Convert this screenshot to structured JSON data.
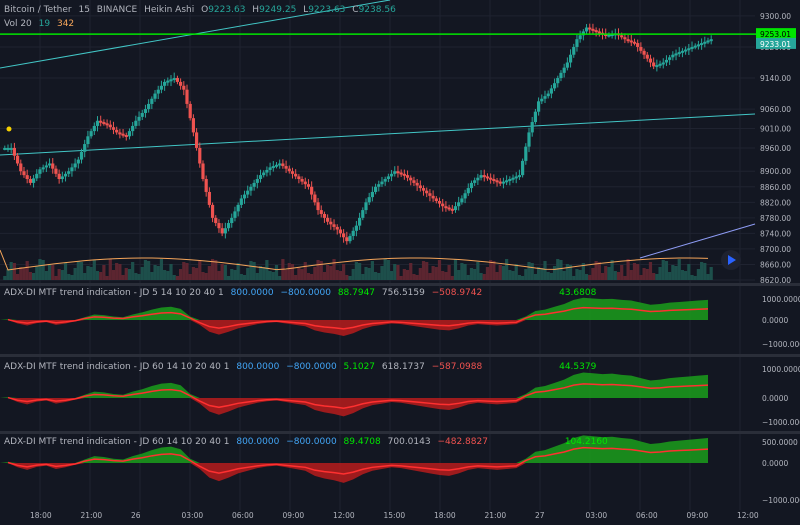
{
  "header": {
    "symbol": "Bitcoin / Tether",
    "interval": "15",
    "exchange": "BINANCE",
    "chart_style": "Heikin Ashi",
    "o_label": "O",
    "o_value": "9223.63",
    "h_label": "H",
    "h_value": "9249.25",
    "l_label": "L",
    "l_value": "9223.63",
    "c_label": "C",
    "c_value": "9238.56",
    "vol_label": "Vol 20",
    "vol_value_1": "19",
    "vol_value_2": "342"
  },
  "price_axis": {
    "ticks": [
      "9300.00",
      "9220.00",
      "9140.00",
      "9060.00",
      "9010.00",
      "8960.00",
      "8900.00",
      "8860.00",
      "8820.00",
      "8780.00",
      "8740.00",
      "8700.00",
      "8660.00",
      "8620.00"
    ],
    "badge_green": "9253.01",
    "badge_price": "9233.01"
  },
  "indicators": [
    {
      "title": "ADX-DI MTF trend indication - JD 5 14 10 20 40 1",
      "values": [
        "800.0000",
        "−800.0000",
        "88.7947",
        "756.5159",
        "−508.9742",
        "",
        "43.6808"
      ],
      "ticks": [
        "1000.0000",
        "0.0000",
        "−1000.0000"
      ]
    },
    {
      "title": "ADX-DI MTF trend indication - JD 60 14 10 20 40 1",
      "values": [
        "800.0000",
        "−800.0000",
        "5.1027",
        "618.1737",
        "−587.0988",
        "",
        "44.5379"
      ],
      "ticks": [
        "1000.0000",
        "0.0000",
        "−1000.0000"
      ]
    },
    {
      "title": "ADX-DI MTF trend indication - JD 60 14 10 20 40 1",
      "values": [
        "800.0000",
        "−800.0000",
        "89.4708",
        "700.0143",
        "−482.8827",
        "",
        "104.2160"
      ],
      "ticks": [
        "500.0000",
        "0.0000",
        "−1000.0000"
      ]
    }
  ],
  "time_axis": [
    "18:00",
    "21:00",
    "26",
    "03:00",
    "06:00",
    "09:00",
    "12:00",
    "15:00",
    "18:00",
    "21:00",
    "27",
    "03:00",
    "06:00",
    "09:00",
    "12:00"
  ],
  "colors": {
    "up": "#26a69a",
    "down": "#ef5350",
    "bg": "#131722",
    "green_line": "#00e600",
    "ma": "#f5a55a",
    "trendline": "#42c6c6"
  },
  "chart_data": {
    "type": "candlestick",
    "chart_style": "Heikin Ashi",
    "interval_minutes": 15,
    "ylim": [
      8620,
      9310
    ],
    "horizontal_level": 9253.01,
    "last_price": 9233.01,
    "close_path": [
      8960,
      8900,
      8870,
      8905,
      8920,
      8880,
      8900,
      8930,
      8990,
      9030,
      9020,
      9000,
      8990,
      9030,
      9060,
      9100,
      9130,
      9140,
      9110,
      9000,
      8880,
      8780,
      8740,
      8780,
      8830,
      8860,
      8890,
      8910,
      8920,
      8900,
      8880,
      8860,
      8800,
      8770,
      8750,
      8720,
      8760,
      8820,
      8860,
      8880,
      8900,
      8890,
      8870,
      8850,
      8830,
      8810,
      8800,
      8830,
      8870,
      8890,
      8880,
      8870,
      8880,
      8890,
      9000,
      9080,
      9100,
      9140,
      9180,
      9240,
      9270,
      9260,
      9250,
      9255,
      9240,
      9230,
      9200,
      9170,
      9180,
      9200,
      9210,
      9220,
      9230,
      9240
    ],
    "volume_ma": 20
  }
}
